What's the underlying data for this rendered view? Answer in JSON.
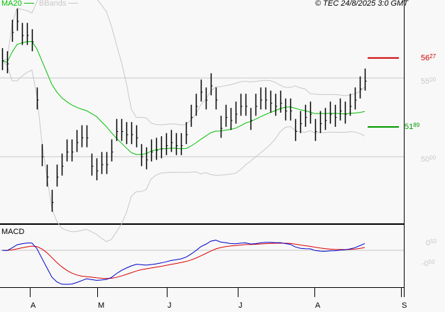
{
  "legend": {
    "ma_label": "MA20",
    "bb_label": "BBands",
    "ma_color": "#00c000",
    "bb_color": "#c8c8c8"
  },
  "copyright": "© TEC 24/8/2025 3:0 GMT",
  "price_axis": {
    "ticks": [
      {
        "int": "55",
        "dec": "00",
        "value": 55.0
      },
      {
        "int": "50",
        "dec": "00",
        "value": 50.0
      }
    ]
  },
  "levels": {
    "resistance": {
      "int": "56",
      "dec": "27",
      "value": 56.27,
      "color": "#cc0000"
    },
    "support": {
      "int": "51",
      "dec": "89",
      "value": 51.89,
      "color": "#009900"
    }
  },
  "macd": {
    "label": "MACD",
    "ticks": [
      {
        "int": "0",
        "dec": "50"
      },
      {
        "int": "-0",
        "dec": "50"
      }
    ],
    "macd_color": "#0000cc",
    "signal_color": "#dd0000"
  },
  "months": [
    "A",
    "M",
    "J",
    "J",
    "A",
    "S"
  ],
  "closes": [
    56.1,
    55.9,
    57.9,
    58.6,
    57.7,
    57.7,
    57.3,
    53.6,
    50.0,
    48.7,
    47.1,
    48.7,
    49.4,
    50.3,
    50.3,
    50.9,
    51.2,
    51.2,
    49.4,
    49.1,
    49.5,
    49.5,
    50.3,
    51.6,
    51.6,
    51.4,
    51.4,
    51.2,
    50.0,
    49.8,
    50.3,
    50.4,
    50.5,
    50.7,
    50.9,
    50.7,
    50.7,
    51.4,
    52.5,
    53.2,
    54.1,
    53.6,
    54.5,
    53.6,
    51.8,
    52.5,
    52.3,
    52.7,
    53.2,
    53.2,
    52.3,
    53.2,
    53.6,
    53.6,
    53.4,
    53.2,
    53.4,
    52.9,
    52.9,
    51.6,
    52.1,
    52.5,
    52.7,
    51.6,
    52.1,
    52.3,
    52.7,
    52.5,
    52.9,
    52.7,
    53.2,
    53.6,
    54.3,
    54.8
  ]
}
